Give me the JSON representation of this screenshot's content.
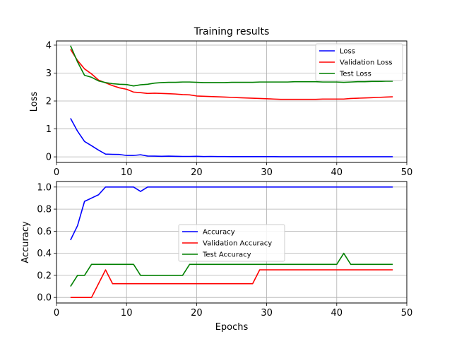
{
  "chart_data": [
    {
      "type": "line",
      "title": "Training results",
      "xlabel": "",
      "ylabel": "Loss",
      "xlim": [
        0,
        50
      ],
      "ylim": [
        -0.2,
        4.15
      ],
      "xticks": [
        0,
        10,
        20,
        30,
        40,
        50
      ],
      "yticks": [
        0,
        1,
        2,
        3,
        4
      ],
      "grid": true,
      "legend": "top-right",
      "x": [
        2,
        3,
        4,
        5,
        6,
        7,
        8,
        9,
        10,
        11,
        12,
        13,
        14,
        15,
        16,
        17,
        18,
        19,
        20,
        21,
        22,
        23,
        24,
        25,
        26,
        27,
        28,
        29,
        30,
        31,
        32,
        33,
        34,
        35,
        36,
        37,
        38,
        39,
        40,
        41,
        42,
        43,
        44,
        45,
        46,
        47,
        48
      ],
      "series": [
        {
          "name": "Loss",
          "color": "#0000ff",
          "values": [
            1.38,
            0.92,
            0.55,
            0.4,
            0.24,
            0.1,
            0.09,
            0.085,
            0.05,
            0.05,
            0.075,
            0.03,
            0.025,
            0.02,
            0.025,
            0.02,
            0.015,
            0.015,
            0.02,
            0.01,
            0.015,
            0.01,
            0.01,
            0.008,
            0.008,
            0.007,
            0.007,
            0.006,
            0.006,
            0.006,
            0.005,
            0.005,
            0.005,
            0.005,
            0.005,
            0.004,
            0.004,
            0.004,
            0.004,
            0.005,
            0.004,
            0.004,
            0.003,
            0.003,
            0.003,
            0.003,
            0.003
          ]
        },
        {
          "name": "Validation Loss",
          "color": "#ff0000",
          "values": [
            3.85,
            3.45,
            3.15,
            2.97,
            2.75,
            2.65,
            2.55,
            2.47,
            2.42,
            2.32,
            2.3,
            2.27,
            2.28,
            2.27,
            2.26,
            2.25,
            2.23,
            2.22,
            2.18,
            2.17,
            2.16,
            2.15,
            2.14,
            2.13,
            2.12,
            2.11,
            2.1,
            2.09,
            2.08,
            2.07,
            2.06,
            2.06,
            2.06,
            2.06,
            2.06,
            2.06,
            2.07,
            2.07,
            2.07,
            2.07,
            2.09,
            2.1,
            2.11,
            2.12,
            2.13,
            2.14,
            2.15
          ]
        },
        {
          "name": "Test Loss",
          "color": "#008000",
          "values": [
            3.98,
            3.4,
            2.92,
            2.85,
            2.72,
            2.66,
            2.62,
            2.6,
            2.59,
            2.54,
            2.58,
            2.6,
            2.64,
            2.66,
            2.67,
            2.67,
            2.68,
            2.68,
            2.67,
            2.66,
            2.66,
            2.66,
            2.66,
            2.67,
            2.67,
            2.67,
            2.67,
            2.68,
            2.68,
            2.68,
            2.68,
            2.68,
            2.69,
            2.69,
            2.69,
            2.69,
            2.68,
            2.68,
            2.68,
            2.67,
            2.68,
            2.69,
            2.69,
            2.7,
            2.7,
            2.71,
            2.71
          ]
        }
      ]
    },
    {
      "type": "line",
      "title": "",
      "xlabel": "Epochs",
      "ylabel": "Accuracy",
      "xlim": [
        0,
        50
      ],
      "ylim": [
        -0.05,
        1.05
      ],
      "xticks": [
        0,
        10,
        20,
        30,
        40,
        50
      ],
      "yticks": [
        "0.0",
        "0.2",
        "0.4",
        "0.6",
        "0.8",
        "1.0"
      ],
      "grid": true,
      "legend": "center",
      "x": [
        2,
        3,
        4,
        5,
        6,
        7,
        8,
        9,
        10,
        11,
        12,
        13,
        14,
        15,
        16,
        17,
        18,
        19,
        20,
        21,
        22,
        23,
        24,
        25,
        26,
        27,
        28,
        29,
        30,
        31,
        32,
        33,
        34,
        35,
        36,
        37,
        38,
        39,
        40,
        41,
        42,
        43,
        44,
        45,
        46,
        47,
        48
      ],
      "series": [
        {
          "name": "Accuracy",
          "color": "#0000ff",
          "values": [
            0.52,
            0.65,
            0.87,
            0.9,
            0.93,
            1.0,
            1.0,
            1.0,
            1.0,
            1.0,
            0.96,
            1.0,
            1.0,
            1.0,
            1.0,
            1.0,
            1.0,
            1.0,
            1.0,
            1.0,
            1.0,
            1.0,
            1.0,
            1.0,
            1.0,
            1.0,
            1.0,
            1.0,
            1.0,
            1.0,
            1.0,
            1.0,
            1.0,
            1.0,
            1.0,
            1.0,
            1.0,
            1.0,
            1.0,
            1.0,
            1.0,
            1.0,
            1.0,
            1.0,
            1.0,
            1.0,
            1.0
          ]
        },
        {
          "name": "Validation Accuracy",
          "color": "#ff0000",
          "values": [
            0.0,
            0.0,
            0.0,
            0.0,
            0.125,
            0.25,
            0.125,
            0.125,
            0.125,
            0.125,
            0.125,
            0.125,
            0.125,
            0.125,
            0.125,
            0.125,
            0.125,
            0.125,
            0.125,
            0.125,
            0.125,
            0.125,
            0.125,
            0.125,
            0.125,
            0.125,
            0.125,
            0.25,
            0.25,
            0.25,
            0.25,
            0.25,
            0.25,
            0.25,
            0.25,
            0.25,
            0.25,
            0.25,
            0.25,
            0.25,
            0.25,
            0.25,
            0.25,
            0.25,
            0.25,
            0.25,
            0.25
          ]
        },
        {
          "name": "Test Accuracy",
          "color": "#008000",
          "values": [
            0.1,
            0.2,
            0.2,
            0.3,
            0.3,
            0.3,
            0.3,
            0.3,
            0.3,
            0.3,
            0.2,
            0.2,
            0.2,
            0.2,
            0.2,
            0.2,
            0.2,
            0.3,
            0.3,
            0.3,
            0.3,
            0.3,
            0.3,
            0.3,
            0.3,
            0.3,
            0.3,
            0.3,
            0.3,
            0.3,
            0.3,
            0.3,
            0.3,
            0.3,
            0.3,
            0.3,
            0.3,
            0.3,
            0.3,
            0.4,
            0.3,
            0.3,
            0.3,
            0.3,
            0.3,
            0.3,
            0.3
          ]
        }
      ]
    }
  ]
}
